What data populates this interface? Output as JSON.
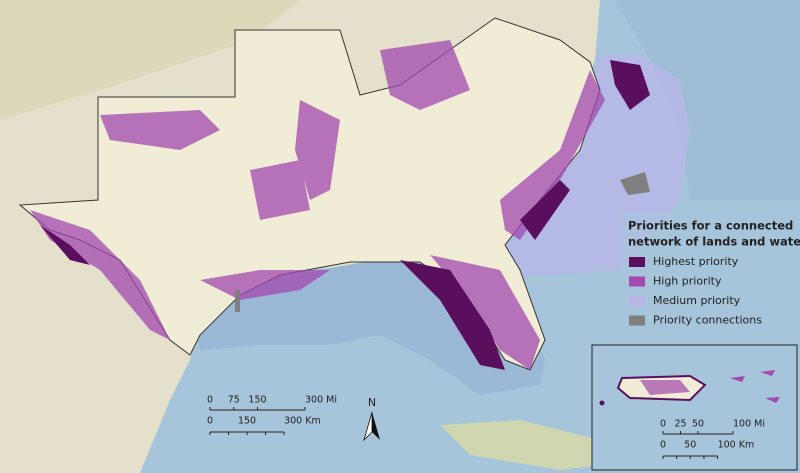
{
  "legend": {
    "title": [
      "Priorities for a connected",
      "network of lands and waters"
    ],
    "items": [
      {
        "label": "Highest priority",
        "color": "#5a0f5e"
      },
      {
        "label": "High priority",
        "color": "#a24aae"
      },
      {
        "label": "Medium priority",
        "color": "#b8b6e8"
      },
      {
        "label": "Priority connections",
        "color": "#7f7f7f"
      }
    ]
  },
  "scale_bar": {
    "miles": [
      "0",
      "75",
      "150",
      "300 Mi"
    ],
    "km": [
      "0",
      "150",
      "300 Km"
    ]
  },
  "north_arrow": "N",
  "inset": {
    "scale_bar": {
      "miles": [
        "0",
        "25",
        "50",
        "100 Mi"
      ],
      "km": [
        "0",
        "50",
        "100 Km"
      ]
    }
  }
}
